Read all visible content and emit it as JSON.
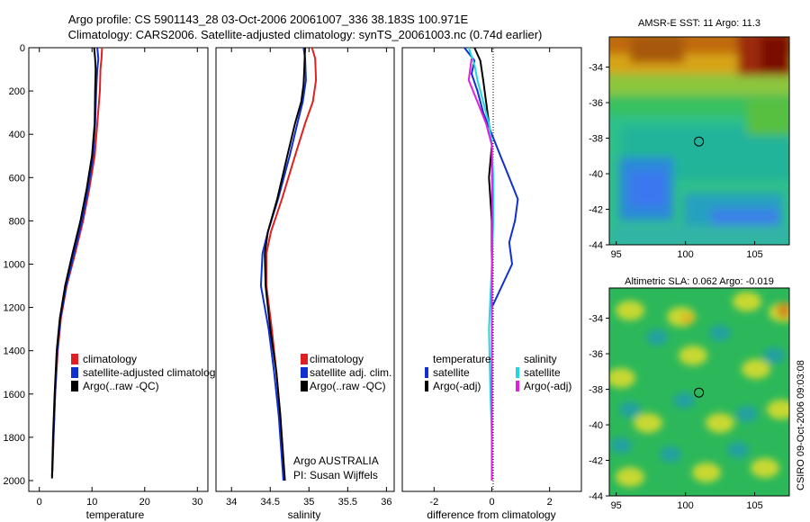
{
  "header": {
    "line1": "Argo profile: CS 5901143_28 03-Oct-2006 20061007_336 38.183S 100.971E",
    "line2": "Climatology: CARS2006. Satellite-adjusted climatology: synTS_20061003.nc (0.74d earlier)"
  },
  "footer": {
    "credit_line1": "Argo AUSTRALIA",
    "credit_line2": "PI: Susan Wijffels",
    "timestamp": "CSIRO 09-Oct-2006 09:03:08"
  },
  "colors": {
    "climatology": "#e02020",
    "satellite": "#1030d0",
    "argo": "#000000",
    "salinity_satellite": "#20d8e0",
    "salinity_argo": "#e020e0"
  },
  "chart_data": [
    {
      "id": "temperature",
      "type": "line",
      "xlabel": "temperature",
      "ylabel": "",
      "xlim": [
        -2,
        32
      ],
      "ylim": [
        2050,
        0
      ],
      "xticks": [
        0,
        10,
        20,
        30
      ],
      "yticks": [
        0,
        200,
        400,
        600,
        800,
        1000,
        1200,
        1400,
        1600,
        1800,
        2000
      ],
      "legend_position": "lower-right",
      "series": [
        {
          "name": "climatology",
          "color": "#e02020",
          "points": [
            [
              11.9,
              0
            ],
            [
              11.8,
              50
            ],
            [
              11.6,
              100
            ],
            [
              11.5,
              200
            ],
            [
              11.0,
              350
            ],
            [
              10.5,
              500
            ],
            [
              9.5,
              650
            ],
            [
              8.3,
              800
            ],
            [
              6.8,
              950
            ],
            [
              5.2,
              1100
            ],
            [
              4.1,
              1250
            ],
            [
              3.5,
              1400
            ],
            [
              3.0,
              1600
            ],
            [
              2.7,
              1800
            ],
            [
              2.5,
              1960
            ]
          ]
        },
        {
          "name": "satellite-adjusted climatology",
          "color": "#1030d0",
          "points": [
            [
              11.0,
              0
            ],
            [
              11.2,
              50
            ],
            [
              11.0,
              100
            ],
            [
              10.8,
              200
            ],
            [
              10.6,
              350
            ],
            [
              10.2,
              500
            ],
            [
              9.3,
              650
            ],
            [
              8.1,
              800
            ],
            [
              6.6,
              950
            ],
            [
              5.1,
              1100
            ],
            [
              4.0,
              1250
            ],
            [
              3.4,
              1400
            ],
            [
              3.0,
              1600
            ],
            [
              2.7,
              1800
            ],
            [
              2.4,
              1980
            ]
          ]
        },
        {
          "name": "Argo(..raw -QC)",
          "color": "#000000",
          "points": [
            [
              10.4,
              0
            ],
            [
              10.6,
              50
            ],
            [
              10.7,
              100
            ],
            [
              10.6,
              200
            ],
            [
              10.5,
              350
            ],
            [
              10.0,
              500
            ],
            [
              9.0,
              650
            ],
            [
              7.8,
              800
            ],
            [
              6.3,
              950
            ],
            [
              4.9,
              1100
            ],
            [
              3.9,
              1250
            ],
            [
              3.3,
              1400
            ],
            [
              2.9,
              1600
            ],
            [
              2.6,
              1800
            ],
            [
              2.4,
              1990
            ]
          ]
        }
      ],
      "legend": [
        "climatology",
        "satellite-adjusted climatology",
        "Argo(..raw -QC)"
      ]
    },
    {
      "id": "salinity",
      "type": "line",
      "xlabel": "salinity",
      "ylabel": "",
      "xlim": [
        33.8,
        36.1
      ],
      "ylim": [
        2050,
        0
      ],
      "xticks": [
        34,
        34.5,
        35,
        35.5,
        36
      ],
      "xtick_labels": [
        "34",
        "34.5",
        "35",
        "35.5",
        "36"
      ],
      "legend_position": "lower-right",
      "series": [
        {
          "name": "climatology",
          "color": "#e02020",
          "points": [
            [
              35.04,
              0
            ],
            [
              35.08,
              50
            ],
            [
              35.09,
              150
            ],
            [
              35.05,
              250
            ],
            [
              34.95,
              350
            ],
            [
              34.82,
              500
            ],
            [
              34.65,
              700
            ],
            [
              34.51,
              850
            ],
            [
              34.45,
              950
            ],
            [
              34.45,
              1100
            ],
            [
              34.52,
              1300
            ],
            [
              34.58,
              1500
            ],
            [
              34.63,
              1700
            ],
            [
              34.66,
              1900
            ],
            [
              34.68,
              2000
            ]
          ]
        },
        {
          "name": "satellite adj. clim.",
          "color": "#1030d0",
          "points": [
            [
              34.93,
              0
            ],
            [
              34.95,
              50
            ],
            [
              34.96,
              150
            ],
            [
              34.92,
              250
            ],
            [
              34.85,
              350
            ],
            [
              34.75,
              500
            ],
            [
              34.6,
              700
            ],
            [
              34.47,
              850
            ],
            [
              34.4,
              950
            ],
            [
              34.38,
              1100
            ],
            [
              34.48,
              1300
            ],
            [
              34.55,
              1500
            ],
            [
              34.61,
              1700
            ],
            [
              34.65,
              1900
            ],
            [
              34.67,
              2000
            ]
          ]
        },
        {
          "name": "Argo(..raw -QC)",
          "color": "#000000",
          "points": [
            [
              34.95,
              0
            ],
            [
              34.94,
              100
            ],
            [
              34.93,
              170
            ],
            [
              34.9,
              250
            ],
            [
              34.82,
              350
            ],
            [
              34.72,
              500
            ],
            [
              34.59,
              700
            ],
            [
              34.47,
              850
            ],
            [
              34.43,
              950
            ],
            [
              34.44,
              1100
            ],
            [
              34.5,
              1300
            ],
            [
              34.58,
              1500
            ],
            [
              34.63,
              1700
            ],
            [
              34.67,
              1900
            ],
            [
              34.69,
              2000
            ]
          ]
        }
      ],
      "legend": [
        "climatology",
        "satellite adj. clim.",
        "Argo(..raw -QC)"
      ]
    },
    {
      "id": "difference",
      "type": "line",
      "xlabel": "difference from climatology",
      "ylabel": "",
      "xlim": [
        -3.1,
        3.1
      ],
      "ylim": [
        2050,
        0
      ],
      "xticks": [
        -2,
        0,
        2
      ],
      "zero_line": "dotted",
      "legend_position": "lower-center",
      "legend_group_titles": [
        "temperature",
        "salinity"
      ],
      "series": [
        {
          "name": "temperature satellite",
          "color": "#1030d0",
          "points": [
            [
              -0.95,
              0
            ],
            [
              -0.6,
              60
            ],
            [
              -0.7,
              120
            ],
            [
              -0.5,
              200
            ],
            [
              -0.3,
              300
            ],
            [
              0.0,
              400
            ],
            [
              0.3,
              500
            ],
            [
              0.6,
              600
            ],
            [
              0.9,
              700
            ],
            [
              0.8,
              800
            ],
            [
              0.6,
              900
            ],
            [
              0.7,
              1000
            ],
            [
              0.0,
              1200
            ],
            [
              0.0,
              2000
            ]
          ]
        },
        {
          "name": "temperature Argo(-adj)",
          "color": "#000000",
          "points": [
            [
              -0.6,
              0
            ],
            [
              -0.4,
              60
            ],
            [
              -0.3,
              150
            ],
            [
              -0.2,
              250
            ],
            [
              -0.1,
              350
            ],
            [
              0.0,
              450
            ],
            [
              -0.1,
              600
            ],
            [
              0.0,
              800
            ],
            [
              0.0,
              1000
            ],
            [
              0.0,
              2000
            ]
          ]
        },
        {
          "name": "salinity satellite",
          "color": "#20d8e0",
          "points": [
            [
              -0.8,
              0
            ],
            [
              -0.6,
              80
            ],
            [
              -0.5,
              150
            ],
            [
              -0.3,
              250
            ],
            [
              -0.1,
              350
            ],
            [
              0.0,
              450
            ],
            [
              0.05,
              600
            ],
            [
              0.05,
              800
            ],
            [
              0.0,
              1000
            ],
            [
              -0.1,
              1300
            ],
            [
              -0.05,
              1600
            ],
            [
              0.0,
              1800
            ],
            [
              0.0,
              2000
            ]
          ]
        },
        {
          "name": "salinity Argo(-adj)",
          "color": "#e020e0",
          "points": [
            [
              -0.7,
              50
            ],
            [
              -0.8,
              150
            ],
            [
              -0.5,
              250
            ],
            [
              -0.2,
              350
            ],
            [
              0.0,
              450
            ],
            [
              0.02,
              800
            ],
            [
              0.0,
              1200
            ],
            [
              0.0,
              1600
            ],
            [
              0.0,
              2000
            ]
          ]
        }
      ],
      "legend": [
        "temperature",
        "satellite",
        "Argo(-adj)",
        "salinity",
        "satellite",
        "Argo(-adj)"
      ]
    },
    {
      "id": "sst_map",
      "type": "heatmap",
      "title": "AMSR-E SST: 11 Argo: 11.3",
      "xlim": [
        94.5,
        107.5
      ],
      "ylim": [
        -44,
        -32.3
      ],
      "xticks": [
        95,
        100,
        105
      ],
      "yticks": [
        -34,
        -36,
        -38,
        -40,
        -42,
        -44
      ],
      "marker": {
        "lon": 100.971,
        "lat": -38.183
      }
    },
    {
      "id": "sla_map",
      "type": "heatmap",
      "title": "Altimetric SLA: 0.062 Argo: -0.019",
      "xlim": [
        94.5,
        107.5
      ],
      "ylim": [
        -44,
        -32.3
      ],
      "xticks": [
        95,
        100,
        105
      ],
      "yticks": [
        -34,
        -36,
        -38,
        -40,
        -42,
        -44
      ],
      "marker": {
        "lon": 100.971,
        "lat": -38.183
      }
    }
  ]
}
